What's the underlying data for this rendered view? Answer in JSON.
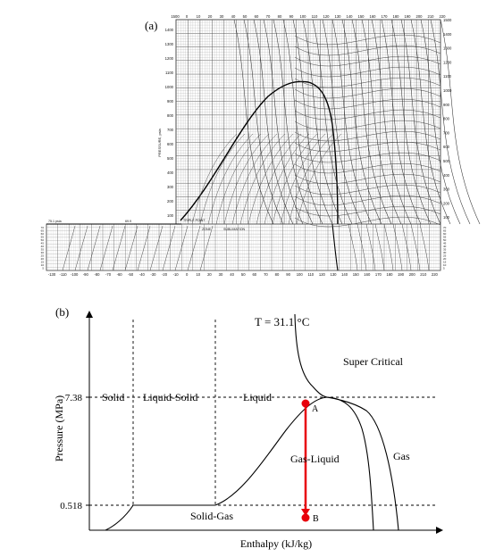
{
  "panels": {
    "a": {
      "label": "(a)",
      "y_axis_title": "PRESSURE, psia",
      "top_ticks": [
        "1500",
        "0",
        "10",
        "20",
        "30",
        "40",
        "50",
        "60",
        "70",
        "80",
        "90",
        "100",
        "110",
        "120",
        "130",
        "140",
        "150",
        "160",
        "170",
        "180",
        "190",
        "200",
        "210",
        "220"
      ],
      "bottom_ticks": [
        "-130",
        "-110",
        "-100",
        "-90",
        "-80",
        "-70",
        "-60",
        "-50",
        "-40",
        "-30",
        "-20",
        "-10",
        "0",
        "10",
        "20",
        "30",
        "40",
        "50",
        "60",
        "70",
        "80",
        "90",
        "100",
        "110",
        "120",
        "130",
        "140",
        "150",
        "160",
        "170",
        "180",
        "190",
        "200",
        "210",
        "220"
      ],
      "left_ticks_upper": [
        "1400",
        "1300",
        "1200",
        "1100",
        "1000",
        "900",
        "800",
        "700",
        "600",
        "500",
        "400",
        "300",
        "200",
        "100"
      ],
      "left_ticks_lower": [
        "70",
        "65",
        "60",
        "55",
        "50",
        "45",
        "40",
        "35",
        "30",
        "25",
        "20",
        "15",
        "10",
        "5"
      ],
      "right_ticks": [
        "1500",
        "1400",
        "1300",
        "1200",
        "1100",
        "1000",
        "900",
        "800",
        "700",
        "600",
        "500",
        "400",
        "300",
        "200",
        "100",
        "70",
        "65",
        "60",
        "55",
        "50",
        "45",
        "40",
        "35",
        "30",
        "25",
        "20",
        "15",
        "10",
        "5"
      ],
      "annotations": {
        "triple_line": "75.1 psia",
        "triple_value": "69.9",
        "triple_point": "TRIPLE POINT",
        "zone": "ZONE",
        "sublimation": "SUBLIMATION"
      }
    },
    "b": {
      "label": "(b)",
      "temperature_label": "T = 31.1 °C",
      "x_axis_title": "Enthalpy (kJ/kg)",
      "y_axis_title": "Pressure (MPa)",
      "y_ticks": [
        "7.38",
        "0.518"
      ],
      "regions": {
        "solid": "Solid",
        "liquid_solid": "Liquid-Solid",
        "liquid": "Liquid",
        "super_critical": "Super Critical",
        "gas_liquid": "Gas-Liquid",
        "gas": "Gas",
        "solid_gas": "Solid-Gas"
      },
      "points": {
        "a": "A",
        "b": "B"
      },
      "colors": {
        "arrow": "#e8000b",
        "line": "#000000"
      }
    }
  }
}
